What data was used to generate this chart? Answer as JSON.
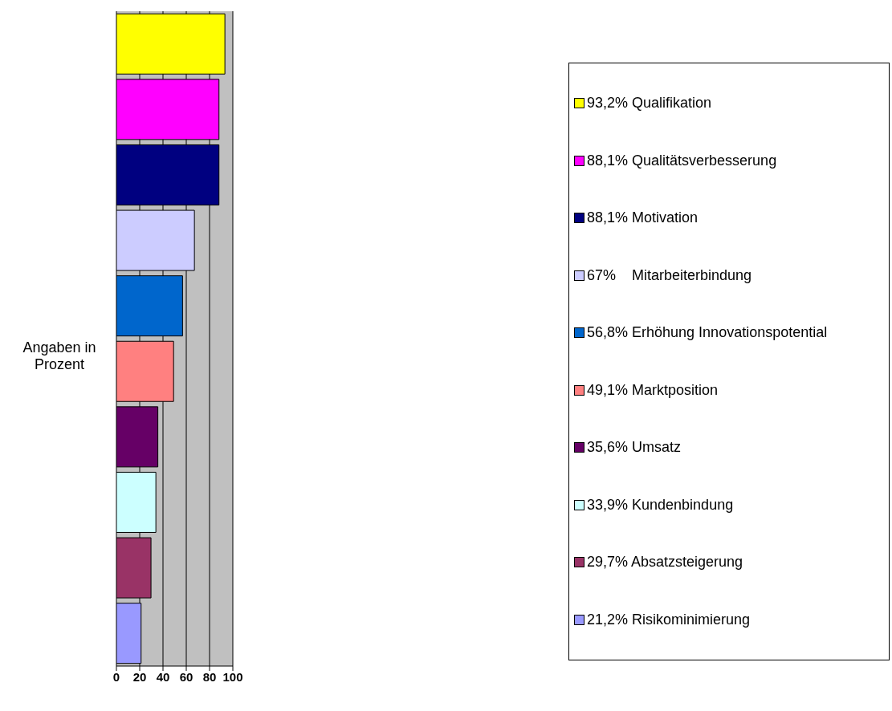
{
  "chart_data": {
    "type": "bar",
    "orientation": "horizontal",
    "ylabel": "Angaben in Prozent",
    "categories": [
      null,
      null,
      null,
      null,
      null,
      null,
      null,
      null,
      null,
      null
    ],
    "series": [
      {
        "name": "93,2% Qualifikation",
        "color": "#ffff00",
        "values": [
          93.2,
          null,
          null,
          null,
          null,
          null,
          null,
          null,
          null,
          null
        ]
      },
      {
        "name": "88,1% Qualitätsverbesserung",
        "color": "#ff00ff",
        "values": [
          null,
          88.1,
          null,
          null,
          null,
          null,
          null,
          null,
          null,
          null
        ]
      },
      {
        "name": "88,1% Motivation",
        "color": "#000080",
        "values": [
          null,
          null,
          88.1,
          null,
          null,
          null,
          null,
          null,
          null,
          null
        ]
      },
      {
        "name": "67%    Mitarbeiterbindung",
        "color": "#ccccff",
        "values": [
          null,
          null,
          null,
          67,
          null,
          null,
          null,
          null,
          null,
          null
        ]
      },
      {
        "name": "56,8% Erhöhung Innovationspotential",
        "color": "#0066cc",
        "values": [
          null,
          null,
          null,
          null,
          56.8,
          null,
          null,
          null,
          null,
          null
        ]
      },
      {
        "name": "49,1% Marktposition",
        "color": "#ff8080",
        "values": [
          null,
          null,
          null,
          null,
          null,
          49.1,
          null,
          null,
          null,
          null
        ]
      },
      {
        "name": "35,6% Umsatz",
        "color": "#660066",
        "values": [
          null,
          null,
          null,
          null,
          null,
          null,
          35.6,
          null,
          null,
          null
        ]
      },
      {
        "name": "33,9% Kundenbindung",
        "color": "#ccffff",
        "values": [
          null,
          null,
          null,
          null,
          null,
          null,
          null,
          33.9,
          null,
          null
        ]
      },
      {
        "name": "29,7% Absatzsteigerung",
        "color": "#993366",
        "values": [
          null,
          null,
          null,
          null,
          null,
          null,
          null,
          null,
          29.7,
          null
        ]
      },
      {
        "name": "21,2% Risikominimierung",
        "color": "#9999ff",
        "values": [
          null,
          null,
          null,
          null,
          null,
          null,
          null,
          null,
          null,
          21.2
        ]
      }
    ],
    "xlim": [
      0,
      100
    ],
    "xticks": [
      0,
      20,
      40,
      60,
      80,
      100
    ],
    "grid": "x",
    "legend": "right",
    "tick_labels": "x"
  }
}
